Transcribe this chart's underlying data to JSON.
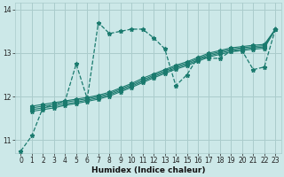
{
  "xlabel": "Humidex (Indice chaleur)",
  "bg_color": "#cce8e8",
  "grid_color": "#aacccc",
  "line_color": "#1a7a6e",
  "xlim": [
    -0.5,
    23.5
  ],
  "ylim": [
    10.7,
    14.15
  ],
  "yticks": [
    11,
    12,
    13,
    14
  ],
  "xticks": [
    0,
    1,
    2,
    3,
    4,
    5,
    6,
    7,
    8,
    9,
    10,
    11,
    12,
    13,
    14,
    15,
    16,
    17,
    18,
    19,
    20,
    21,
    22,
    23
  ],
  "jagged_x": [
    0,
    1,
    2,
    3,
    4,
    5,
    6,
    7,
    8,
    9,
    10,
    11,
    12,
    13,
    14,
    15,
    16,
    17,
    18,
    19,
    20,
    21,
    22,
    23
  ],
  "jagged_y": [
    10.75,
    11.1,
    11.75,
    11.8,
    11.9,
    12.75,
    11.95,
    13.7,
    13.45,
    13.5,
    13.55,
    13.55,
    13.35,
    13.1,
    12.25,
    12.5,
    12.9,
    12.88,
    12.88,
    13.05,
    13.05,
    12.62,
    12.68,
    13.55
  ],
  "linear1_x": [
    1,
    2,
    3,
    4,
    5,
    6,
    7,
    8,
    9,
    10,
    11,
    12,
    13,
    14,
    15,
    16,
    17,
    18,
    19,
    20,
    21,
    22,
    23
  ],
  "linear1_y": [
    11.78,
    11.82,
    11.86,
    11.9,
    11.94,
    11.98,
    12.03,
    12.1,
    12.2,
    12.3,
    12.42,
    12.52,
    12.62,
    12.72,
    12.8,
    12.9,
    13.0,
    13.06,
    13.12,
    13.15,
    13.18,
    13.2,
    13.55
  ],
  "linear2_x": [
    1,
    2,
    3,
    4,
    5,
    6,
    7,
    8,
    9,
    10,
    11,
    12,
    13,
    14,
    15,
    16,
    17,
    18,
    19,
    20,
    21,
    22,
    23
  ],
  "linear2_y": [
    11.74,
    11.78,
    11.82,
    11.87,
    11.91,
    11.95,
    12.0,
    12.07,
    12.17,
    12.27,
    12.38,
    12.49,
    12.59,
    12.69,
    12.77,
    12.87,
    12.97,
    13.03,
    13.09,
    13.12,
    13.15,
    13.17,
    13.55
  ],
  "linear3_x": [
    1,
    2,
    3,
    4,
    5,
    6,
    7,
    8,
    9,
    10,
    11,
    12,
    13,
    14,
    15,
    16,
    17,
    18,
    19,
    20,
    21,
    22,
    23
  ],
  "linear3_y": [
    11.7,
    11.74,
    11.78,
    11.83,
    11.87,
    11.92,
    11.97,
    12.04,
    12.14,
    12.24,
    12.35,
    12.46,
    12.56,
    12.66,
    12.74,
    12.84,
    12.94,
    13.0,
    13.06,
    13.09,
    13.12,
    13.14,
    13.55
  ],
  "linear4_x": [
    1,
    2,
    3,
    4,
    5,
    6,
    7,
    8,
    9,
    10,
    11,
    12,
    13,
    14,
    15,
    16,
    17,
    18,
    19,
    20,
    21,
    22,
    23
  ],
  "linear4_y": [
    11.66,
    11.7,
    11.74,
    11.8,
    11.84,
    11.89,
    11.94,
    12.01,
    12.11,
    12.21,
    12.32,
    12.43,
    12.53,
    12.63,
    12.71,
    12.81,
    12.91,
    12.97,
    13.03,
    13.06,
    13.09,
    13.11,
    13.55
  ]
}
